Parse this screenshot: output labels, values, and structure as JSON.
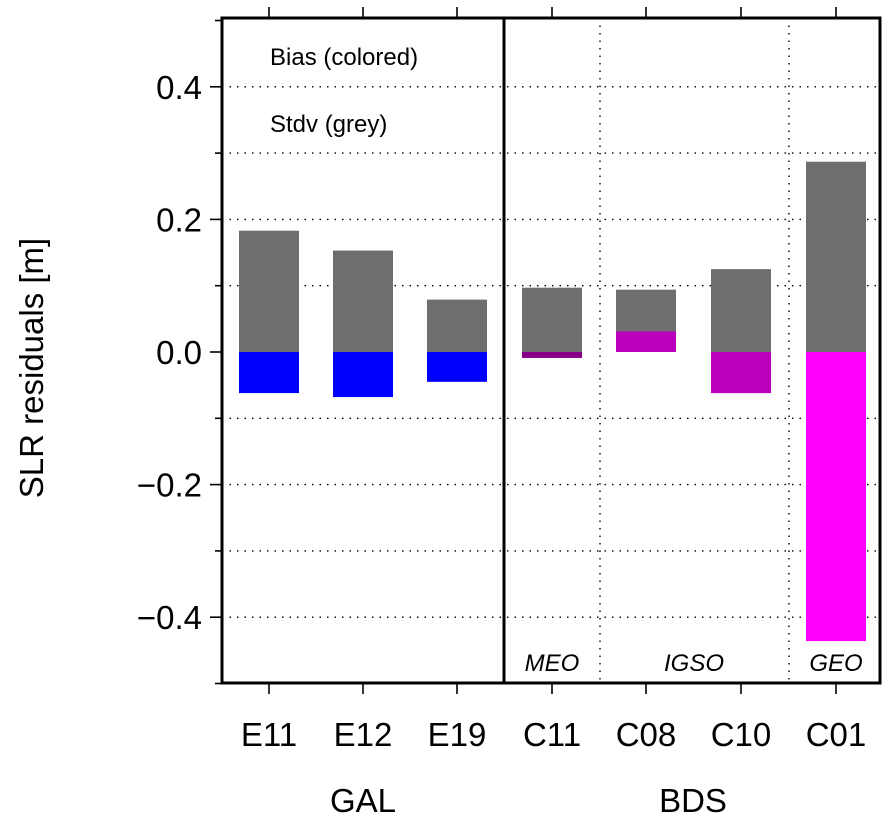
{
  "chart_data": {
    "type": "bar",
    "ylabel": "SLR residuals  [m]",
    "xlabel": "",
    "ylim": [
      -0.5,
      0.5
    ],
    "yticks": [
      0.4,
      0.2,
      0.0,
      -0.2,
      -0.4
    ],
    "ytick_labels": [
      "0.4",
      "0.2",
      "0.0",
      "−0.2",
      "−0.4"
    ],
    "ygrid": [
      0.4,
      0.3,
      0.2,
      0.1,
      -0.1,
      -0.2,
      -0.3,
      -0.4
    ],
    "categories": [
      "E11",
      "E12",
      "E19",
      "C11",
      "C08",
      "C10",
      "C01"
    ],
    "groups": [
      {
        "label": "GAL",
        "categories": [
          "E11",
          "E12",
          "E19"
        ]
      },
      {
        "label": "BDS",
        "categories": [
          "C11",
          "C08",
          "C10",
          "C01"
        ]
      }
    ],
    "orbit_labels": [
      {
        "label": "MEO",
        "categories": [
          "C11"
        ]
      },
      {
        "label": "IGSO",
        "categories": [
          "C08",
          "C10"
        ]
      },
      {
        "label": "GEO",
        "categories": [
          "C01"
        ]
      }
    ],
    "legend": {
      "bias": "Bias (colored)",
      "stdv": "Stdv (grey)",
      "position": "top-left"
    },
    "series": [
      {
        "name": "Stdv",
        "color": "#6e6e6e",
        "values": [
          0.183,
          0.153,
          0.079,
          0.097,
          0.094,
          0.125,
          0.287
        ]
      },
      {
        "name": "Bias",
        "colors": [
          "#0000ff",
          "#0000ff",
          "#0000ff",
          "#880088",
          "#bb00bb",
          "#bb00bb",
          "#ff00ff"
        ],
        "values": [
          -0.062,
          -0.068,
          -0.045,
          -0.009,
          0.031,
          -0.062,
          -0.436
        ]
      }
    ]
  }
}
